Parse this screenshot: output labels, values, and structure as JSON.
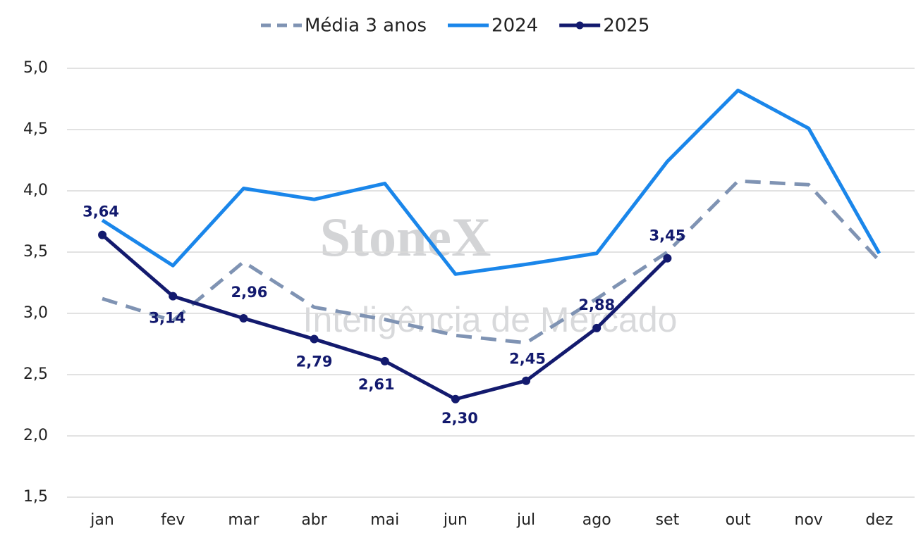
{
  "chart_data": {
    "type": "line",
    "watermark": {
      "brand": "StoneX",
      "subtitle": "Inteligência de Mercado"
    },
    "categories": [
      "jan",
      "fev",
      "mar",
      "abr",
      "mai",
      "jun",
      "jul",
      "ago",
      "set",
      "out",
      "nov",
      "dez"
    ],
    "series": [
      {
        "name": "Média 3 anos",
        "color": "#7f93b3",
        "dash": true,
        "values": [
          3.12,
          2.94,
          3.42,
          3.05,
          2.95,
          2.82,
          2.76,
          3.12,
          3.5,
          4.08,
          4.05,
          3.43
        ]
      },
      {
        "name": "2024",
        "color": "#1a86ea",
        "values": [
          3.76,
          3.39,
          4.02,
          3.93,
          4.06,
          3.32,
          3.4,
          3.49,
          4.24,
          4.82,
          4.51,
          3.49
        ]
      },
      {
        "name": "2025",
        "color": "#131a6e",
        "marker": true,
        "values": [
          3.64,
          3.14,
          2.96,
          2.79,
          2.61,
          2.3,
          2.45,
          2.88,
          3.45,
          null,
          null,
          null
        ],
        "value_labels": [
          "3,64",
          "3,14",
          "2,96",
          "2,79",
          "2,61",
          "2,30",
          "2,45",
          "2,88",
          "3,45",
          null,
          null,
          null
        ]
      }
    ],
    "ylim": [
      1.5,
      5.0
    ],
    "yticks": [
      {
        "value": 1.5,
        "label": "1,5"
      },
      {
        "value": 2.0,
        "label": "2,0"
      },
      {
        "value": 2.5,
        "label": "2,5"
      },
      {
        "value": 3.0,
        "label": "3,0"
      },
      {
        "value": 3.5,
        "label": "3,5"
      },
      {
        "value": 4.0,
        "label": "4,0"
      },
      {
        "value": 4.5,
        "label": "4,5"
      },
      {
        "value": 5.0,
        "label": "5,0"
      }
    ],
    "grid": true,
    "legend": "top"
  }
}
